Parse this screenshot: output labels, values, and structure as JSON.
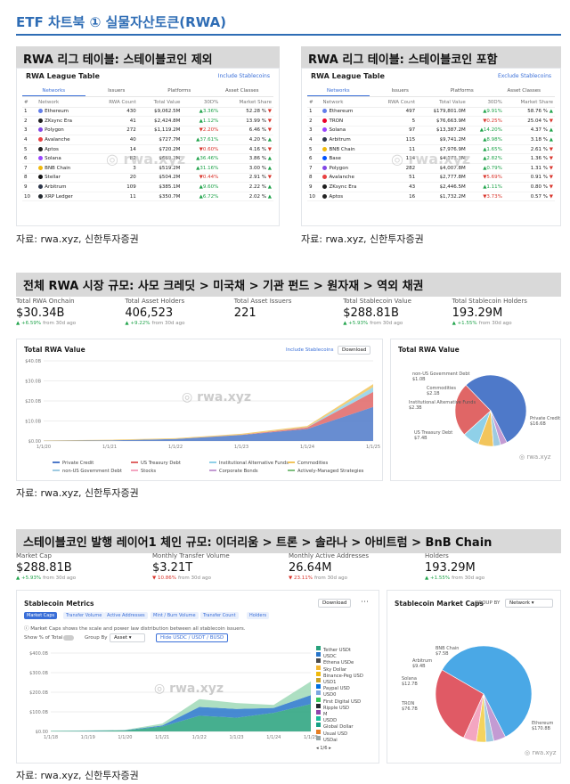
{
  "page_title": "ETF 차트북 ① 실물자산토큰(RWA)",
  "source_caption": "자료: rwa.xyz, 신한투자증권",
  "watermark": "rwa.xyz",
  "colors": {
    "accent": "#2f6db5",
    "up": "#1fa34a",
    "down": "#d9342b",
    "link": "#3a6fd8"
  },
  "league_common": {
    "title": "RWA League Table",
    "tabs": [
      "Networks",
      "Issuers",
      "Platforms",
      "Asset Classes"
    ],
    "columns": [
      "#",
      "Network",
      "RWA Count",
      "Total Value",
      "30D%",
      "Market Share"
    ]
  },
  "league_left": {
    "heading": "RWA 리그 테이블: 스테이블코인 제외",
    "toggle": "Include Stablecoins",
    "rows": [
      {
        "rank": "1",
        "name": "Ethereum",
        "count": "430",
        "value": "$9,062.5M",
        "pct": "3.36%",
        "dir": "up",
        "share": "52.28 %",
        "sdir": "down",
        "color": "#627eea"
      },
      {
        "rank": "2",
        "name": "ZKsync Era",
        "count": "41",
        "value": "$2,424.8M",
        "pct": "1.12%",
        "dir": "up",
        "share": "13.99 %",
        "sdir": "down",
        "color": "#1e1e1e"
      },
      {
        "rank": "3",
        "name": "Polygon",
        "count": "272",
        "value": "$1,119.2M",
        "pct": "2.20%",
        "dir": "down",
        "share": "6.46 %",
        "sdir": "down",
        "color": "#8247e5"
      },
      {
        "rank": "4",
        "name": "Avalanche",
        "count": "40",
        "value": "$727.7M",
        "pct": "37.61%",
        "dir": "up",
        "share": "4.20 %",
        "sdir": "up",
        "color": "#e84142"
      },
      {
        "rank": "5",
        "name": "Aptos",
        "count": "14",
        "value": "$720.2M",
        "pct": "0.60%",
        "dir": "down",
        "share": "4.16 %",
        "sdir": "down",
        "color": "#222222"
      },
      {
        "rank": "6",
        "name": "Solana",
        "count": "82",
        "value": "$669.2M",
        "pct": "36.46%",
        "dir": "up",
        "share": "3.86 %",
        "sdir": "up",
        "color": "#9945ff"
      },
      {
        "rank": "7",
        "name": "BNB Chain",
        "count": "3",
        "value": "$519.2M",
        "pct": "31.16%",
        "dir": "up",
        "share": "3.00 %",
        "sdir": "up",
        "color": "#f0b90b"
      },
      {
        "rank": "8",
        "name": "Stellar",
        "count": "20",
        "value": "$504.2M",
        "pct": "0.44%",
        "dir": "down",
        "share": "2.91 %",
        "sdir": "down",
        "color": "#111111"
      },
      {
        "rank": "9",
        "name": "Arbitrum",
        "count": "109",
        "value": "$385.1M",
        "pct": "9.60%",
        "dir": "up",
        "share": "2.22 %",
        "sdir": "up",
        "color": "#2d374b"
      },
      {
        "rank": "10",
        "name": "XRP Ledger",
        "count": "11",
        "value": "$350.7M",
        "pct": "6.72%",
        "dir": "up",
        "share": "2.02 %",
        "sdir": "up",
        "color": "#23292f"
      }
    ]
  },
  "league_right": {
    "heading": "RWA 리그 테이블: 스테이블코인 포함",
    "toggle": "Exclude Stablecoins",
    "rows": [
      {
        "rank": "1",
        "name": "Ethereum",
        "count": "497",
        "value": "$179,801.0M",
        "pct": "9.91%",
        "dir": "up",
        "share": "58.76 %",
        "sdir": "up",
        "color": "#627eea"
      },
      {
        "rank": "2",
        "name": "TRON",
        "count": "5",
        "value": "$76,663.9M",
        "pct": "0.25%",
        "dir": "down",
        "share": "25.04 %",
        "sdir": "down",
        "color": "#eb0029"
      },
      {
        "rank": "3",
        "name": "Solana",
        "count": "97",
        "value": "$13,387.2M",
        "pct": "14.20%",
        "dir": "up",
        "share": "4.37 %",
        "sdir": "up",
        "color": "#9945ff"
      },
      {
        "rank": "4",
        "name": "Arbitrum",
        "count": "115",
        "value": "$9,741.2M",
        "pct": "8.98%",
        "dir": "up",
        "share": "3.18 %",
        "sdir": "up",
        "color": "#2d374b"
      },
      {
        "rank": "5",
        "name": "BNB Chain",
        "count": "11",
        "value": "$7,976.9M",
        "pct": "1.65%",
        "dir": "up",
        "share": "2.61 %",
        "sdir": "down",
        "color": "#f0b90b"
      },
      {
        "rank": "6",
        "name": "Base",
        "count": "114",
        "value": "$4,173.3M",
        "pct": "2.82%",
        "dir": "up",
        "share": "1.36 %",
        "sdir": "down",
        "color": "#0052ff"
      },
      {
        "rank": "7",
        "name": "Polygon",
        "count": "282",
        "value": "$4,007.8M",
        "pct": "0.79%",
        "dir": "up",
        "share": "1.31 %",
        "sdir": "down",
        "color": "#8247e5"
      },
      {
        "rank": "8",
        "name": "Avalanche",
        "count": "51",
        "value": "$2,777.8M",
        "pct": "5.69%",
        "dir": "down",
        "share": "0.91 %",
        "sdir": "down",
        "color": "#e84142"
      },
      {
        "rank": "9",
        "name": "ZKsync Era",
        "count": "43",
        "value": "$2,446.5M",
        "pct": "1.11%",
        "dir": "up",
        "share": "0.80 %",
        "sdir": "down",
        "color": "#1e1e1e"
      },
      {
        "rank": "10",
        "name": "Aptos",
        "count": "16",
        "value": "$1,732.2M",
        "pct": "3.73%",
        "dir": "down",
        "share": "0.57 %",
        "sdir": "down",
        "color": "#222222"
      }
    ]
  },
  "rwa_market": {
    "heading": "전체 RWA 시장 규모: 사모 크레딧 > 미국채 > 기관 펀드 > 원자재 > 역외 채권",
    "stats": [
      {
        "label": "Total RWA Onchain",
        "value": "$30.34B",
        "change": "+6.59%",
        "suffix": "from 30d ago"
      },
      {
        "label": "Total Asset Holders",
        "value": "406,523",
        "change": "+9.22%",
        "suffix": "from 30d ago"
      },
      {
        "label": "Total Asset Issuers",
        "value": "221",
        "change": "",
        "suffix": ""
      },
      {
        "label": "Total Stablecoin Value",
        "value": "$288.81B",
        "change": "+5.93%",
        "suffix": "from 30d ago"
      },
      {
        "label": "Total Stablecoin Holders",
        "value": "193.29M",
        "change": "+1.55%",
        "suffix": "from 30d ago"
      }
    ],
    "area_title": "Total RWA Value",
    "area_toggle": "Include Stablecoins",
    "download": "Download",
    "pie_title": "Total RWA Value",
    "legend": [
      {
        "name": "Private Credit",
        "color": "#4e79c9"
      },
      {
        "name": "US Treasury Debt",
        "color": "#e06666"
      },
      {
        "name": "Institutional Alternative Funds",
        "color": "#8fd0e8"
      },
      {
        "name": "Commodities",
        "color": "#f2c55c"
      },
      {
        "name": "non-US Government Debt",
        "color": "#9ecae1"
      },
      {
        "name": "Stocks",
        "color": "#f4a6c1"
      },
      {
        "name": "Corporate Bonds",
        "color": "#c39bd3"
      },
      {
        "name": "Actively-Managed Strategies",
        "color": "#7fbf7f"
      }
    ]
  },
  "stable": {
    "heading": "스테이블코인 발행 레이어1 체인 규모: 이더리움 > 트론 > 솔라나 > 아비트럼 > BnB Chain",
    "stats": [
      {
        "label": "Market Cap",
        "value": "$288.81B",
        "change": "+5.93%",
        "dir": "up",
        "suffix": "from 30d ago"
      },
      {
        "label": "Monthly Transfer Volume",
        "value": "$3.21T",
        "change": "10.86%",
        "dir": "down",
        "suffix": "from 30d ago"
      },
      {
        "label": "Monthly Active Addresses",
        "value": "26.64M",
        "change": "23.11%",
        "dir": "down",
        "suffix": "from 30d ago"
      },
      {
        "label": "Holders",
        "value": "193.29M",
        "change": "+1.55%",
        "dir": "up",
        "suffix": "from 30d ago"
      }
    ],
    "metrics_title": "Stablecoin Metrics",
    "download": "Download",
    "metric_tabs": [
      "Market Caps",
      "Transfer Volume",
      "Active Addresses",
      "Mint / Burn Volume",
      "Transfer Count",
      "Holders"
    ],
    "desc": "Market Caps shows the scale and power law distribution between all stablecoin issuers.",
    "show_pct": "Show % of Total",
    "group_by": "Group By",
    "group_val": "Asset",
    "hide_btn": "Hide USDC / USDT / BUSD",
    "legend": [
      {
        "name": "Tether USDt",
        "color": "#26a17b"
      },
      {
        "name": "USDC",
        "color": "#2775ca"
      },
      {
        "name": "Ethena USDe",
        "color": "#4a4a4a"
      },
      {
        "name": "Sky Dollar",
        "color": "#f4b731"
      },
      {
        "name": "Binance-Peg USD",
        "color": "#f0b90b"
      },
      {
        "name": "USD1",
        "color": "#c9a227"
      },
      {
        "name": "Paypal USD",
        "color": "#0070e0"
      },
      {
        "name": "USD0",
        "color": "#7aa7e0"
      },
      {
        "name": "First Digital USD",
        "color": "#34c759"
      },
      {
        "name": "Ripple USD",
        "color": "#23292f"
      },
      {
        "name": "M",
        "color": "#8e44ad"
      },
      {
        "name": "USDD",
        "color": "#1abc9c"
      },
      {
        "name": "Global Dollar",
        "color": "#16a085"
      },
      {
        "name": "Usual USD",
        "color": "#e67e22"
      },
      {
        "name": "USDai",
        "color": "#95a5a6"
      }
    ],
    "legend_page": "1/6",
    "pie_title": "Stablecoin Market Caps",
    "pie_group_label": "GROUP BY",
    "pie_group_val": "Network"
  },
  "chart_data": [
    {
      "type": "area",
      "title": "Total RWA Value",
      "x": [
        "1/1/20",
        "1/1/21",
        "1/1/22",
        "1/1/23",
        "1/1/24",
        "1/1/25"
      ],
      "yticks": [
        "$40.0B",
        "$30.0B",
        "$20.0B",
        "$10.0B",
        "$0.00"
      ],
      "ylim": [
        0,
        40
      ],
      "series": [
        {
          "name": "Private Credit",
          "values": [
            0.1,
            0.3,
            1.0,
            3.0,
            6.0,
            17.0
          ]
        },
        {
          "name": "US Treasury Debt",
          "values": [
            0.0,
            0.0,
            0.0,
            0.1,
            0.8,
            7.5
          ]
        },
        {
          "name": "Institutional Alternative Funds",
          "values": [
            0,
            0,
            0,
            0,
            0.1,
            2.4
          ]
        },
        {
          "name": "Commodities",
          "values": [
            0.2,
            0.3,
            0.4,
            0.5,
            0.6,
            1.5
          ]
        }
      ]
    },
    {
      "type": "pie",
      "title": "Total RWA Value",
      "labels": [
        "Private Credit",
        "US Treasury Debt",
        "Institutional Alternative Funds",
        "Commodities",
        "non-US Government Debt",
        "other"
      ],
      "display": [
        "$16.6B",
        "$7.4B",
        "$2.3B",
        "$2.1B",
        "$1.0B",
        ""
      ],
      "values": [
        16.6,
        7.4,
        2.3,
        2.1,
        1.0,
        0.9
      ],
      "label_text": [
        "Private Credit\n$16.6B",
        "US Treasury Debt\n$7.4B",
        "Institutional\nAlternative Funds\n$2.3B",
        "Commodities\n$2.1B",
        "non-US Government Debt\n$1.0B",
        ""
      ]
    },
    {
      "type": "area",
      "title": "Stablecoin Metrics",
      "x": [
        "1/1/18",
        "1/1/19",
        "1/1/20",
        "1/1/21",
        "1/1/22",
        "1/1/23",
        "1/1/24",
        "1/1/25"
      ],
      "yticks": [
        "$400.0B",
        "$300.0B",
        "$200.0B",
        "$100.0B",
        "$0.00"
      ],
      "ylim": [
        0,
        400
      ],
      "series": [
        {
          "name": "Tether USDt",
          "values": [
            2,
            3,
            5,
            25,
            80,
            70,
            95,
            140
          ]
        },
        {
          "name": "USDC",
          "values": [
            0,
            1,
            1,
            5,
            45,
            45,
            25,
            45
          ]
        },
        {
          "name": "Other",
          "values": [
            1,
            1,
            2,
            10,
            40,
            30,
            15,
            70
          ]
        }
      ]
    },
    {
      "type": "pie",
      "title": "Stablecoin Market Caps",
      "labels": [
        "Ethereum",
        "TRON",
        "Solana",
        "Arbitrum",
        "BNB Chain",
        "Other"
      ],
      "display": [
        "$170.8B",
        "$76.7B",
        "$12.7B",
        "$9.4B",
        "$7.5B",
        ""
      ],
      "values": [
        170.8,
        76.7,
        12.7,
        9.4,
        7.5,
        11.7
      ]
    }
  ]
}
